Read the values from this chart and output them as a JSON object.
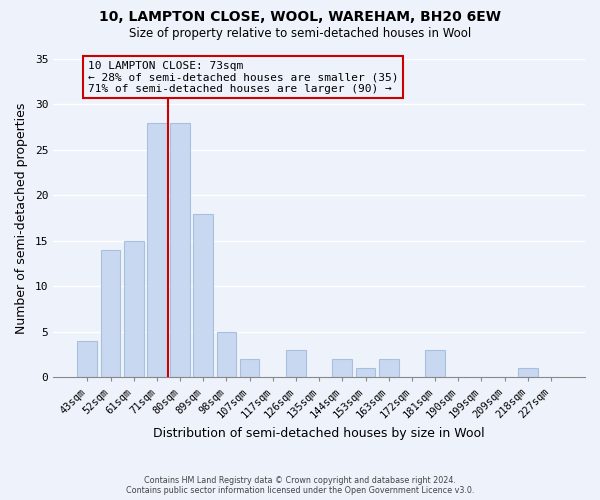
{
  "title": "10, LAMPTON CLOSE, WOOL, WAREHAM, BH20 6EW",
  "subtitle": "Size of property relative to semi-detached houses in Wool",
  "xlabel": "Distribution of semi-detached houses by size in Wool",
  "ylabel": "Number of semi-detached properties",
  "bar_color": "#c8d8f0",
  "bar_edge_color": "#a8c0e0",
  "background_color": "#eef2fa",
  "grid_color": "#ffffff",
  "annotation_box_edge": "#cc0000",
  "property_line_color": "#cc0000",
  "categories": [
    "43sqm",
    "52sqm",
    "61sqm",
    "71sqm",
    "80sqm",
    "89sqm",
    "98sqm",
    "107sqm",
    "117sqm",
    "126sqm",
    "135sqm",
    "144sqm",
    "153sqm",
    "163sqm",
    "172sqm",
    "181sqm",
    "190sqm",
    "199sqm",
    "209sqm",
    "218sqm",
    "227sqm"
  ],
  "values": [
    4,
    14,
    15,
    28,
    28,
    18,
    5,
    2,
    0,
    3,
    0,
    2,
    1,
    2,
    0,
    3,
    0,
    0,
    0,
    1,
    0
  ],
  "ylim": [
    0,
    35
  ],
  "yticks": [
    0,
    5,
    10,
    15,
    20,
    25,
    30,
    35
  ],
  "property_label": "10 LAMPTON CLOSE: 73sqm",
  "annotation_line1": "← 28% of semi-detached houses are smaller (35)",
  "annotation_line2": "71% of semi-detached houses are larger (90) →",
  "footer_line1": "Contains HM Land Registry data © Crown copyright and database right 2024.",
  "footer_line2": "Contains public sector information licensed under the Open Government Licence v3.0.",
  "property_bar_index": 3
}
